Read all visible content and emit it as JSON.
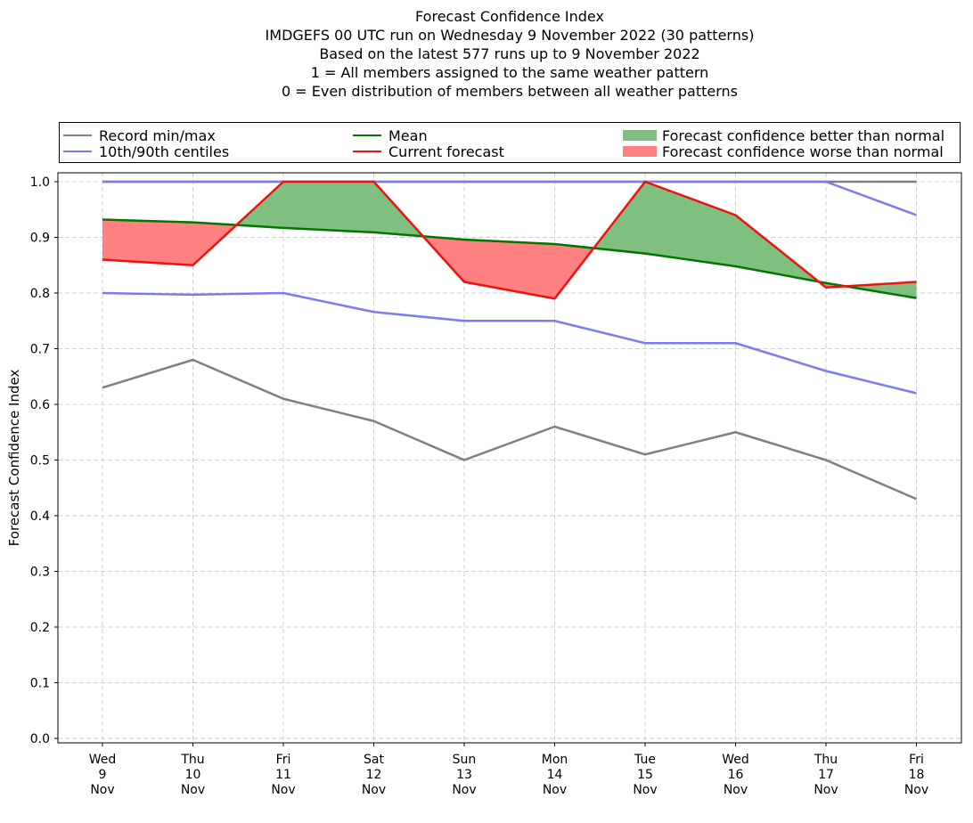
{
  "titles": [
    "Forecast Confidence Index",
    "IMDGEFS 00 UTC run on Wednesday 9 November 2022 (30 patterns)",
    "Based on the latest 577 runs up to 9 November 2022",
    "1 = All members assigned to the same weather pattern",
    "0 = Even distribution of members between all weather patterns"
  ],
  "legend": {
    "record": "Record min/max",
    "centiles": "10th/90th centiles",
    "mean": "Mean",
    "current": "Current forecast",
    "better": "Forecast confidence better than normal",
    "worse": "Forecast confidence worse than normal"
  },
  "colors": {
    "record": "#808080",
    "centiles": "#7b7bf5",
    "mean": "#007800",
    "current": "#f01010",
    "better": "#7fbf7f",
    "worse": "#ff8080"
  },
  "chart_data": {
    "type": "line",
    "ylabel": "Forecast Confidence Index",
    "ylim": [
      0.0,
      1.0
    ],
    "yticks": [
      "0.0",
      "0.1",
      "0.2",
      "0.3",
      "0.4",
      "0.5",
      "0.6",
      "0.7",
      "0.8",
      "0.9",
      "1.0"
    ],
    "categories": [
      [
        "Wed",
        "9",
        "Nov"
      ],
      [
        "Thu",
        "10",
        "Nov"
      ],
      [
        "Fri",
        "11",
        "Nov"
      ],
      [
        "Sat",
        "12",
        "Nov"
      ],
      [
        "Sun",
        "13",
        "Nov"
      ],
      [
        "Mon",
        "14",
        "Nov"
      ],
      [
        "Tue",
        "15",
        "Nov"
      ],
      [
        "Wed",
        "16",
        "Nov"
      ],
      [
        "Thu",
        "17",
        "Nov"
      ],
      [
        "Fri",
        "18",
        "Nov"
      ]
    ],
    "grid": true,
    "series": [
      {
        "name": "Record min/max",
        "key": "record_max",
        "values": [
          1.0,
          1.0,
          1.0,
          1.0,
          1.0,
          1.0,
          1.0,
          1.0,
          1.0,
          1.0
        ]
      },
      {
        "name": "Record min/max",
        "key": "record_min",
        "values": [
          0.63,
          0.68,
          0.61,
          0.57,
          0.5,
          0.56,
          0.51,
          0.55,
          0.5,
          0.43
        ]
      },
      {
        "name": "10th/90th centiles",
        "key": "p90",
        "values": [
          1.0,
          1.0,
          1.0,
          1.0,
          1.0,
          1.0,
          1.0,
          1.0,
          1.0,
          0.94
        ]
      },
      {
        "name": "10th/90th centiles",
        "key": "p10",
        "values": [
          0.8,
          0.797,
          0.8,
          0.766,
          0.75,
          0.75,
          0.71,
          0.71,
          0.66,
          0.62
        ]
      },
      {
        "name": "Mean",
        "key": "mean",
        "values": [
          0.932,
          0.927,
          0.917,
          0.909,
          0.896,
          0.888,
          0.871,
          0.848,
          0.818,
          0.791
        ]
      },
      {
        "name": "Current forecast",
        "key": "current",
        "values": [
          0.86,
          0.85,
          1.0,
          1.0,
          0.82,
          0.79,
          1.0,
          0.94,
          0.81,
          0.82
        ]
      }
    ]
  }
}
